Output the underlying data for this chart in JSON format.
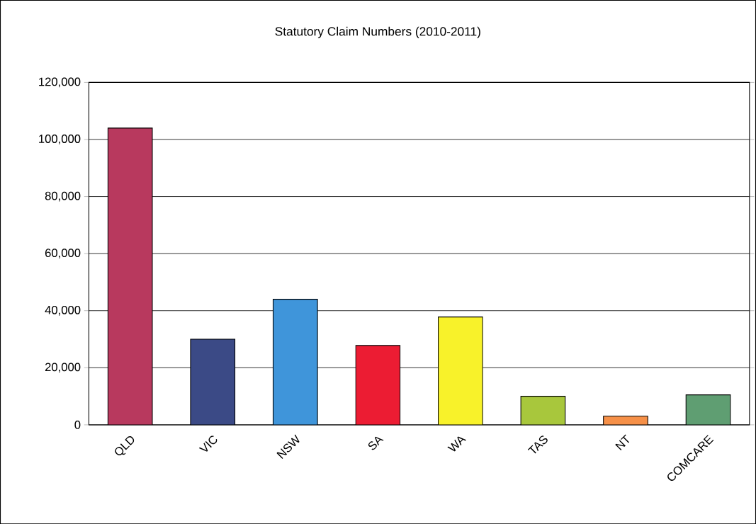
{
  "chart_data": {
    "type": "bar",
    "title": "Statutory Claim Numbers (2010-2011)",
    "categories": [
      "QLD",
      "VIC",
      "NSW",
      "SA",
      "WA",
      "TAS",
      "NT",
      "COMCARE"
    ],
    "values": [
      104000,
      30000,
      44000,
      27800,
      37800,
      10000,
      3000,
      10500
    ],
    "colors": [
      "#b8395e",
      "#3b4a86",
      "#3f95da",
      "#ec1c33",
      "#f8f22a",
      "#a8c73c",
      "#f69048",
      "#5f9e72"
    ],
    "ylim": [
      0,
      120000
    ],
    "yticks": [
      {
        "value": 0,
        "label": "0"
      },
      {
        "value": 20000,
        "label": "20,000"
      },
      {
        "value": 40000,
        "label": "40,000"
      },
      {
        "value": 60000,
        "label": "60,000"
      },
      {
        "value": 80000,
        "label": "80,000"
      },
      {
        "value": 100000,
        "label": "100,000"
      },
      {
        "value": 120000,
        "label": "120,000"
      }
    ],
    "grid": "y"
  }
}
